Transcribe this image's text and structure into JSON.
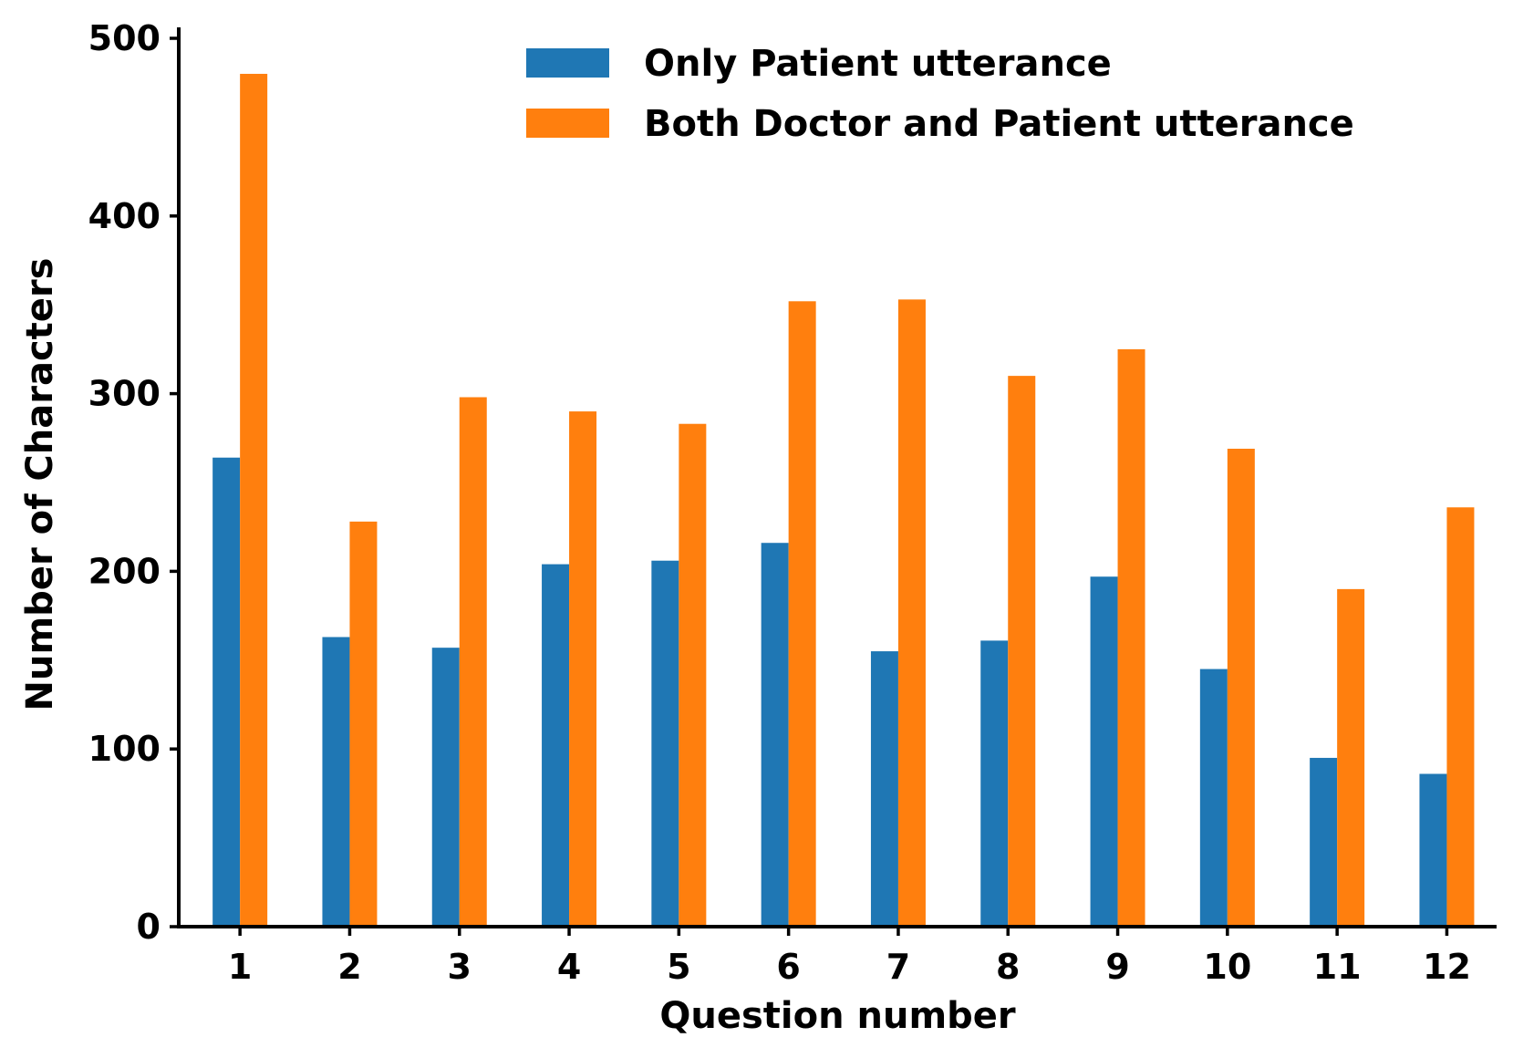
{
  "chart_data": {
    "type": "bar",
    "title": "",
    "xlabel": "Question number",
    "ylabel": "Number of Characters",
    "categories": [
      "1",
      "2",
      "3",
      "4",
      "5",
      "6",
      "7",
      "8",
      "9",
      "10",
      "11",
      "12"
    ],
    "ylim": [
      0,
      500
    ],
    "yticks": [
      "0",
      "100",
      "200",
      "300",
      "400",
      "500"
    ],
    "grid": false,
    "legend_position": "top-right",
    "series": [
      {
        "name": "Only Patient utterance",
        "color": "#1f77b4",
        "values": [
          264,
          163,
          157,
          204,
          206,
          216,
          155,
          161,
          197,
          145,
          95,
          86
        ]
      },
      {
        "name": "Both Doctor and Patient utterance",
        "color": "#ff7f0e",
        "values": [
          480,
          228,
          298,
          290,
          283,
          352,
          353,
          310,
          325,
          269,
          190,
          236
        ]
      }
    ]
  }
}
